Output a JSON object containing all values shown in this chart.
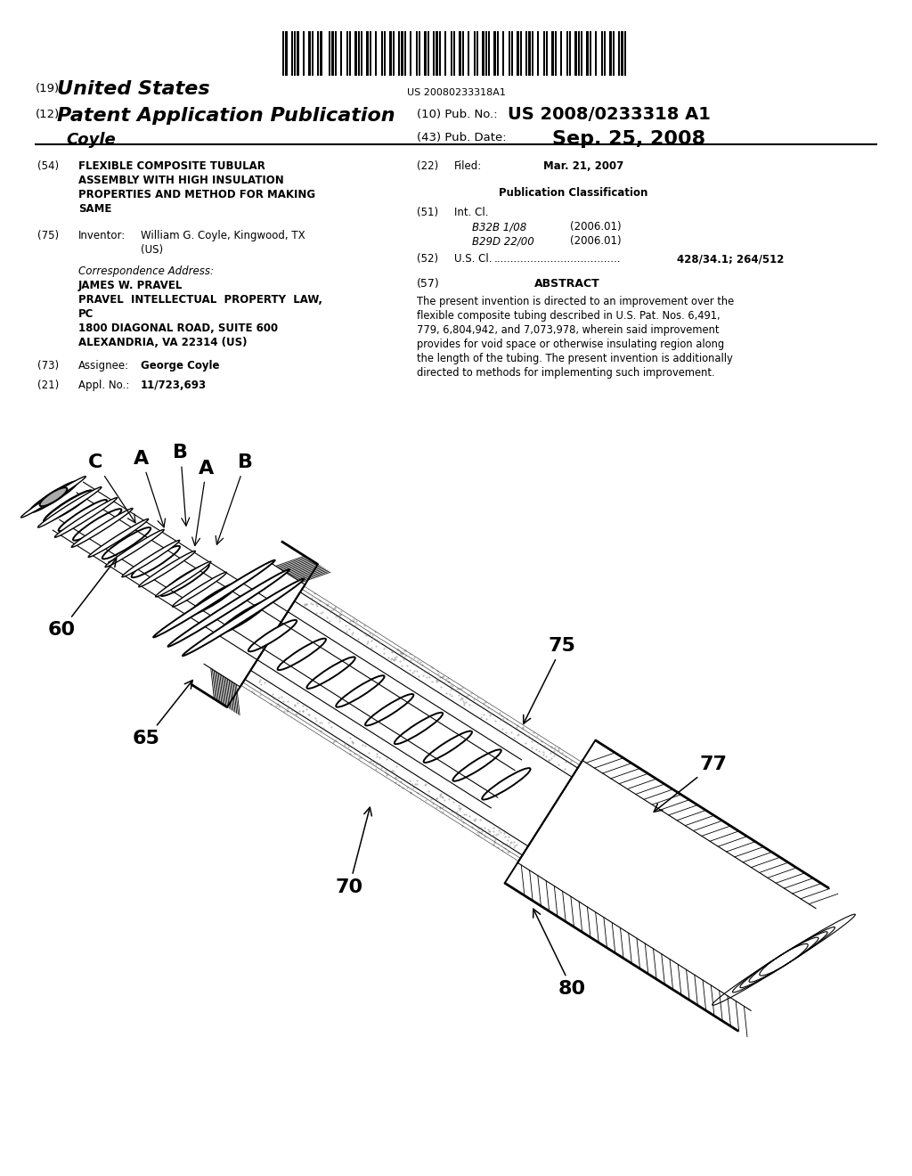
{
  "background_color": "#ffffff",
  "page_width": 10.24,
  "page_height": 13.2,
  "barcode_text": "US 20080233318A1",
  "header": {
    "country_label": "(19)",
    "country": "United States",
    "type_label": "(12)",
    "type": "Patent Application Publication",
    "inventor_name": "Coyle",
    "pub_no_label": "(10) Pub. No.:",
    "pub_no": "US 2008/0233318 A1",
    "pub_date_label": "(43) Pub. Date:",
    "pub_date": "Sep. 25, 2008"
  },
  "left_col": {
    "title_num": "(54)",
    "title_lines": [
      "FLEXIBLE COMPOSITE TUBULAR",
      "ASSEMBLY WITH HIGH INSULATION",
      "PROPERTIES AND METHOD FOR MAKING",
      "SAME"
    ],
    "inventor_num": "(75)",
    "inventor_label": "Inventor:",
    "inventor_val1": "William G. Coyle, Kingwood, TX",
    "inventor_val2": "(US)",
    "corr_header": "Correspondence Address:",
    "corr_lines": [
      "JAMES W. PRAVEL",
      "PRAVEL  INTELLECTUAL  PROPERTY  LAW,",
      "PC",
      "1800 DIAGONAL ROAD, SUITE 600",
      "ALEXANDRIA, VA 22314 (US)"
    ],
    "assignee_num": "(73)",
    "assignee_label": "Assignee:",
    "assignee_val": "George Coyle",
    "appl_num": "(21)",
    "appl_label": "Appl. No.:",
    "appl_val": "11/723,693"
  },
  "right_col": {
    "filed_num": "(22)",
    "filed_label": "Filed:",
    "filed_val": "Mar. 21, 2007",
    "pub_class_header": "Publication Classification",
    "intcl_num": "(51)",
    "intcl_label": "Int. Cl.",
    "intcl_entries": [
      [
        "B32B 1/08",
        "(2006.01)"
      ],
      [
        "B29D 22/00",
        "(2006.01)"
      ]
    ],
    "uscl_num": "(52)",
    "uscl_label": "U.S. Cl.",
    "uscl_dots": "......................................",
    "uscl_val": "428/34.1; 264/512",
    "abstract_num": "(57)",
    "abstract_header": "ABSTRACT",
    "abstract_lines": [
      "The present invention is directed to an improvement over the",
      "flexible composite tubing described in U.S. Pat. Nos. 6,491,",
      "779, 6,804,942, and 7,073,978, wherein said improvement",
      "provides for void space or otherwise insulating region along",
      "the length of the tubing. The present invention is additionally",
      "directed to methods for implementing such improvement."
    ]
  }
}
